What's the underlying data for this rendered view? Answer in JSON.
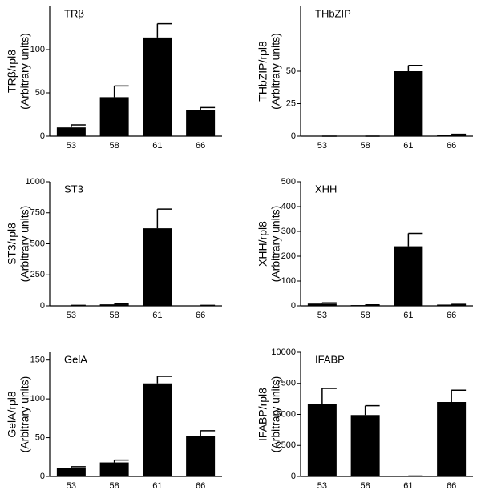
{
  "chart_data": [
    {
      "type": "bar",
      "title": "TRβ",
      "ylabel": [
        "TRβ/rpl8",
        "(Arbitrary units)"
      ],
      "categories": [
        "53",
        "58",
        "61",
        "66"
      ],
      "values": [
        10,
        45,
        114,
        30
      ],
      "errors": [
        3,
        13,
        16,
        3
      ],
      "color": "#000000",
      "ylim": [
        0,
        150
      ],
      "yticks": [
        0,
        50,
        100
      ]
    },
    {
      "type": "bar",
      "title": "THbZIP",
      "ylabel": [
        "THbZIP/rpl8",
        "(Arbitrary units)"
      ],
      "categories": [
        "53",
        "58",
        "61",
        "66"
      ],
      "values": [
        0,
        0,
        50,
        1
      ],
      "errors": [
        0,
        0,
        4.5,
        0.5
      ],
      "color": "#000000",
      "ylim": [
        0,
        100
      ],
      "yticks": [
        0,
        25,
        50
      ]
    },
    {
      "type": "bar",
      "title": "ST3",
      "ylabel": [
        "ST3/rpl8",
        "(Arbitrary units)"
      ],
      "categories": [
        "53",
        "58",
        "61",
        "66"
      ],
      "values": [
        3,
        12,
        625,
        3
      ],
      "errors": [
        1,
        3,
        155,
        1
      ],
      "color": "#000000",
      "ylim": [
        0,
        1000
      ],
      "yticks": [
        0,
        250,
        500,
        750,
        1000
      ]
    },
    {
      "type": "bar",
      "title": "XHH",
      "ylabel": [
        "XHH/rpl8",
        "(Arbitrary units)"
      ],
      "categories": [
        "53",
        "58",
        "61",
        "66"
      ],
      "values": [
        9,
        3,
        240,
        5
      ],
      "errors": [
        3,
        1,
        52,
        1
      ],
      "color": "#000000",
      "ylim": [
        0,
        500
      ],
      "yticks": [
        0,
        100,
        200,
        300,
        400,
        500
      ]
    },
    {
      "type": "bar",
      "title": "GelA",
      "ylabel": [
        "GelA/rpl8",
        "(Arbitrary units)"
      ],
      "categories": [
        "53",
        "58",
        "61",
        "66"
      ],
      "values": [
        11,
        18,
        120,
        52
      ],
      "errors": [
        1.5,
        3,
        9,
        7
      ],
      "color": "#000000",
      "ylim": [
        0,
        160
      ],
      "yticks": [
        0,
        50,
        100,
        150
      ]
    },
    {
      "type": "bar",
      "title": "IFABP",
      "ylabel": [
        "IFABP/rpl8",
        "(Arbitrary units)"
      ],
      "categories": [
        "53",
        "58",
        "61",
        "66"
      ],
      "values": [
        5850,
        4950,
        30,
        6000
      ],
      "errors": [
        1250,
        750,
        0,
        950
      ],
      "color": "#000000",
      "ylim": [
        0,
        10000
      ],
      "yticks": [
        0,
        2500,
        5000,
        7500,
        10000
      ]
    }
  ]
}
